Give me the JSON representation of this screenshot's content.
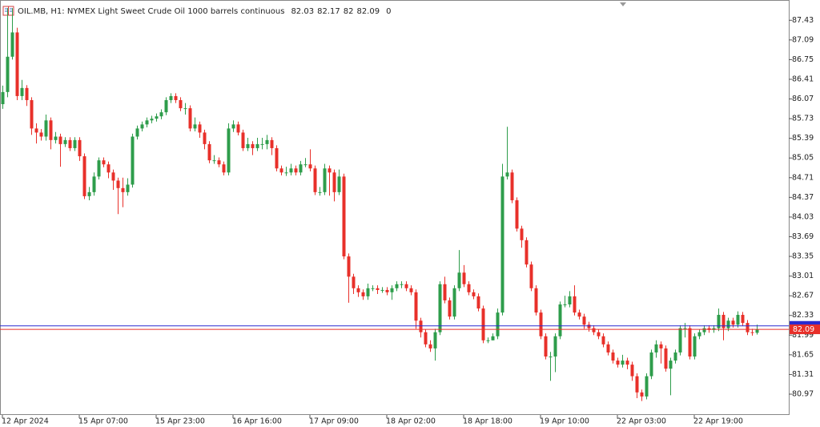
{
  "chart_data": {
    "type": "candlestick",
    "title": "OIL.MB, H1:  NYMEX Light Sweet Crude Oil 1000 barrels continuous",
    "volume": 0,
    "bull_color": "#2e9d4b",
    "bear_color": "#e8302a",
    "ylim": [
      80.61,
      87.78
    ],
    "yticks": [
      87.43,
      87.09,
      86.75,
      86.41,
      86.07,
      85.73,
      85.39,
      85.05,
      84.71,
      84.37,
      84.03,
      83.69,
      83.35,
      83.01,
      82.67,
      82.33,
      81.99,
      81.65,
      81.31,
      80.97
    ],
    "ask_line": {
      "value": 82.15,
      "color": "#2a2ad0"
    },
    "bid_color": "#e8302a",
    "categories": [
      "12 Apr 2024",
      null,
      null,
      null,
      null,
      null,
      null,
      null,
      null,
      null,
      null,
      null,
      null,
      null,
      null,
      null,
      "15 Apr 07:00",
      null,
      null,
      null,
      null,
      null,
      null,
      null,
      null,
      null,
      null,
      null,
      null,
      null,
      null,
      null,
      "15 Apr 23:00",
      null,
      null,
      null,
      null,
      null,
      null,
      null,
      null,
      null,
      null,
      null,
      null,
      null,
      null,
      null,
      "16 Apr 16:00",
      null,
      null,
      null,
      null,
      null,
      null,
      null,
      null,
      null,
      null,
      null,
      null,
      null,
      null,
      null,
      "17 Apr 09:00",
      null,
      null,
      null,
      null,
      null,
      null,
      null,
      null,
      null,
      null,
      null,
      null,
      null,
      null,
      null,
      "18 Apr 02:00",
      null,
      null,
      null,
      null,
      null,
      null,
      null,
      null,
      null,
      null,
      null,
      null,
      null,
      null,
      null,
      "18 Apr 18:00",
      null,
      null,
      null,
      null,
      null,
      null,
      null,
      null,
      null,
      null,
      null,
      null,
      null,
      null,
      null,
      "19 Apr 10:00",
      null,
      null,
      null,
      null,
      null,
      null,
      null,
      null,
      null,
      null,
      null,
      null,
      null,
      null,
      null,
      "22 Apr 03:00",
      null,
      null,
      null,
      null,
      null,
      null,
      null,
      null,
      null,
      null,
      null,
      null,
      null,
      null,
      null,
      "22 Apr 19:00",
      null,
      null,
      null,
      null,
      null,
      null,
      null,
      null,
      null,
      null,
      null,
      null,
      null
    ],
    "open": [
      85.98,
      86.19,
      86.8,
      87.22,
      86.12,
      86.26,
      86.05,
      85.56,
      85.49,
      85.42,
      85.7,
      85.36,
      85.42,
      85.29,
      85.36,
      85.22,
      85.36,
      85.08,
      84.39,
      84.46,
      84.73,
      85.01,
      84.94,
      84.8,
      84.66,
      84.53,
      84.46,
      84.59,
      85.42,
      85.56,
      85.63,
      85.7,
      85.73,
      85.77,
      85.84,
      86.05,
      86.12,
      86.05,
      85.91,
      85.91,
      85.56,
      85.63,
      85.49,
      85.29,
      85.01,
      85.01,
      84.94,
      84.8,
      85.56,
      85.63,
      85.49,
      85.22,
      85.29,
      85.22,
      85.29,
      85.29,
      85.36,
      85.22,
      84.87,
      84.8,
      84.8,
      84.87,
      84.8,
      84.94,
      84.94,
      84.87,
      84.46,
      84.46,
      84.87,
      84.8,
      84.46,
      84.73,
      83.35,
      83.0,
      82.8,
      82.73,
      82.66,
      82.8,
      82.8,
      82.77,
      82.77,
      82.73,
      82.8,
      82.87,
      82.87,
      82.8,
      82.73,
      82.24,
      82.04,
      81.83,
      81.76,
      82.04,
      82.87,
      82.59,
      82.31,
      82.8,
      83.07,
      82.87,
      82.73,
      82.66,
      82.45,
      81.9,
      81.9,
      81.97,
      82.38,
      84.73,
      84.8,
      84.32,
      83.83,
      83.63,
      83.21,
      82.8,
      82.38,
      81.97,
      81.62,
      81.62,
      81.97,
      82.52,
      82.52,
      82.66,
      82.38,
      82.31,
      82.17,
      82.11,
      82.04,
      81.97,
      81.83,
      81.69,
      81.55,
      81.48,
      81.55,
      81.48,
      81.28,
      81.0,
      80.93,
      81.28,
      81.69,
      81.83,
      81.76,
      81.41,
      81.55,
      81.69,
      82.11,
      82.11,
      81.62,
      81.97,
      82.04,
      82.11,
      82.08,
      82.11,
      82.34,
      82.11,
      82.24,
      82.17,
      82.34,
      82.2,
      82.04,
      82.03
    ],
    "high": [
      86.3,
      87.64,
      87.64,
      87.3,
      86.4,
      86.31,
      86.1,
      85.65,
      85.55,
      85.8,
      85.75,
      85.5,
      85.47,
      85.41,
      85.41,
      85.41,
      85.41,
      85.13,
      84.55,
      84.8,
      85.06,
      85.06,
      84.99,
      84.85,
      84.71,
      84.71,
      84.7,
      85.47,
      85.61,
      85.68,
      85.75,
      85.78,
      85.82,
      85.89,
      86.1,
      86.17,
      86.17,
      86.1,
      86.0,
      85.96,
      85.75,
      85.68,
      85.54,
      85.34,
      85.1,
      85.06,
      84.99,
      85.65,
      85.7,
      85.68,
      85.54,
      85.4,
      85.34,
      85.4,
      85.4,
      85.45,
      85.41,
      85.27,
      84.92,
      84.9,
      84.95,
      84.92,
      85.0,
      85.05,
      85.2,
      84.92,
      84.55,
      84.95,
      84.92,
      84.85,
      84.85,
      84.78,
      83.4,
      83.05,
      82.85,
      82.78,
      82.88,
      82.85,
      82.85,
      82.82,
      82.82,
      82.85,
      82.92,
      82.92,
      82.92,
      82.85,
      82.78,
      82.29,
      82.09,
      81.9,
      82.1,
      82.92,
      83.0,
      82.64,
      82.85,
      83.46,
      83.2,
      82.92,
      82.78,
      82.71,
      82.5,
      81.95,
      82.02,
      82.45,
      84.95,
      85.59,
      84.85,
      84.37,
      83.88,
      83.68,
      83.26,
      82.85,
      82.43,
      82.02,
      81.7,
      82.02,
      82.57,
      82.67,
      82.75,
      82.85,
      82.43,
      82.36,
      82.22,
      82.16,
      82.09,
      82.02,
      81.88,
      81.74,
      81.6,
      81.65,
      81.6,
      81.53,
      81.33,
      81.05,
      81.33,
      81.74,
      81.9,
      81.88,
      81.81,
      81.6,
      81.74,
      82.16,
      82.2,
      82.16,
      82.02,
      82.09,
      82.16,
      82.16,
      82.16,
      82.45,
      82.39,
      82.29,
      82.29,
      82.4,
      82.39,
      82.25,
      82.1,
      82.17
    ],
    "low": [
      85.9,
      86.1,
      86.75,
      86.05,
      86.05,
      85.95,
      85.45,
      85.3,
      85.35,
      85.35,
      85.2,
      85.3,
      84.9,
      85.24,
      85.17,
      85.17,
      85.0,
      84.34,
      84.32,
      84.4,
      84.68,
      84.89,
      84.7,
      84.5,
      84.08,
      84.2,
      84.4,
      84.54,
      85.37,
      85.51,
      85.58,
      85.65,
      85.68,
      85.72,
      85.79,
      86.0,
      86.0,
      85.86,
      85.8,
      85.51,
      85.51,
      85.4,
      85.2,
      84.96,
      84.95,
      84.89,
      84.75,
      84.75,
      85.5,
      85.44,
      85.17,
      85.17,
      85.1,
      85.17,
      85.2,
      85.2,
      85.1,
      84.82,
      84.75,
      84.74,
      84.75,
      84.75,
      84.75,
      84.89,
      84.82,
      84.41,
      84.4,
      84.41,
      84.4,
      84.3,
      84.41,
      83.3,
      82.55,
      82.7,
      82.65,
      82.6,
      82.6,
      82.75,
      82.7,
      82.72,
      82.68,
      82.6,
      82.75,
      82.8,
      82.75,
      82.68,
      82.1,
      81.95,
      81.78,
      81.7,
      81.55,
      81.99,
      82.54,
      82.26,
      82.26,
      82.75,
      82.82,
      82.68,
      82.61,
      82.4,
      81.85,
      81.85,
      81.9,
      81.92,
      82.33,
      84.68,
      84.27,
      83.78,
      83.5,
      83.16,
      82.75,
      82.33,
      81.92,
      81.57,
      81.2,
      81.35,
      81.92,
      82.47,
      82.47,
      82.33,
      82.26,
      82.1,
      82.05,
      81.99,
      81.92,
      81.78,
      81.64,
      81.5,
      81.43,
      81.43,
      81.4,
      81.2,
      80.9,
      80.85,
      80.88,
      81.23,
      81.6,
      81.5,
      81.36,
      80.95,
      81.5,
      81.64,
      81.95,
      81.57,
      81.57,
      81.92,
      81.99,
      82.03,
      82.03,
      82.06,
      81.9,
      82.06,
      82.12,
      82.12,
      82.15,
      81.99,
      81.98,
      82.0
    ],
    "close": [
      86.19,
      86.8,
      87.22,
      86.12,
      86.26,
      86.05,
      85.56,
      85.49,
      85.42,
      85.7,
      85.36,
      85.42,
      85.29,
      85.36,
      85.22,
      85.36,
      85.08,
      84.39,
      84.46,
      84.73,
      85.01,
      84.94,
      84.8,
      84.66,
      84.53,
      84.46,
      84.59,
      85.42,
      85.56,
      85.63,
      85.7,
      85.73,
      85.77,
      85.84,
      86.05,
      86.12,
      86.05,
      85.91,
      85.91,
      85.56,
      85.63,
      85.49,
      85.29,
      85.01,
      85.01,
      84.94,
      84.8,
      85.56,
      85.63,
      85.49,
      85.22,
      85.29,
      85.22,
      85.29,
      85.29,
      85.36,
      85.22,
      84.87,
      84.8,
      84.8,
      84.87,
      84.8,
      84.94,
      84.94,
      84.87,
      84.46,
      84.46,
      84.87,
      84.8,
      84.46,
      84.73,
      83.35,
      83.0,
      82.8,
      82.73,
      82.66,
      82.8,
      82.8,
      82.77,
      82.77,
      82.73,
      82.8,
      82.87,
      82.87,
      82.8,
      82.73,
      82.24,
      82.04,
      81.83,
      81.76,
      82.04,
      82.87,
      82.59,
      82.31,
      82.8,
      83.07,
      82.87,
      82.73,
      82.66,
      82.45,
      81.9,
      81.9,
      81.97,
      82.38,
      84.73,
      84.8,
      84.32,
      83.83,
      83.63,
      83.21,
      82.8,
      82.38,
      81.97,
      81.62,
      81.62,
      81.97,
      82.52,
      82.52,
      82.66,
      82.38,
      82.31,
      82.17,
      82.11,
      82.04,
      81.97,
      81.83,
      81.69,
      81.55,
      81.48,
      81.55,
      81.48,
      81.28,
      81.0,
      80.93,
      81.28,
      81.69,
      81.83,
      81.76,
      81.41,
      81.55,
      81.69,
      82.11,
      82.11,
      81.62,
      81.97,
      82.04,
      82.11,
      82.08,
      82.11,
      82.34,
      82.11,
      82.24,
      82.17,
      82.34,
      82.2,
      82.04,
      82.03,
      82.09
    ]
  }
}
